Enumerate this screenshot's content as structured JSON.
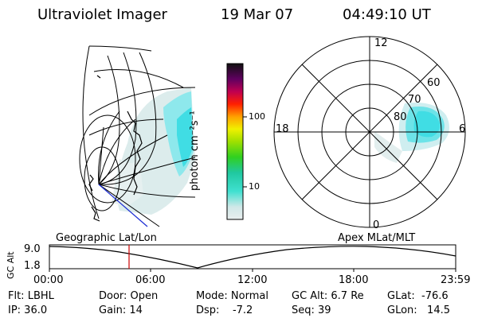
{
  "header": {
    "title": "Ultraviolet Imager",
    "date": "19 Mar 07",
    "time": "04:49:10 UT"
  },
  "colorbar": {
    "label": "photon cm⁻²s⁻¹",
    "ticks": [
      "100",
      "10"
    ]
  },
  "polar_plot": {
    "mlt_labels": [
      "12",
      "18",
      "6",
      "0"
    ],
    "lat_labels": [
      "60",
      "70",
      "80"
    ]
  },
  "timeline": {
    "left_title": "Geographic Lat/Lon",
    "right_title": "Apex  MLat/MLT",
    "y_label": "GC Alt",
    "y_ticks": [
      "9.0",
      "1.8"
    ],
    "x_ticks": [
      "00:00",
      "06:00",
      "12:00",
      "18:00",
      "23:59"
    ],
    "marker_time": "04:49"
  },
  "info": {
    "filter": "Flt: LBHL",
    "ip": "IP: 36.0",
    "door": "Door: Open",
    "gain": "Gain: 14",
    "mode": "Mode: Normal",
    "dsp": "Dsp:    -7.2",
    "gc_alt": "GC Alt: 6.7 Re",
    "seq": "Seq: 39",
    "glat": "GLat:  -76.6",
    "glon": "GLon:   14.5"
  },
  "colors": {
    "background": "#ffffff",
    "foreground": "#000000",
    "marker": "#cc0000",
    "aurora_cyan": "#33dde6",
    "aurora_light": "#cfeef0"
  }
}
